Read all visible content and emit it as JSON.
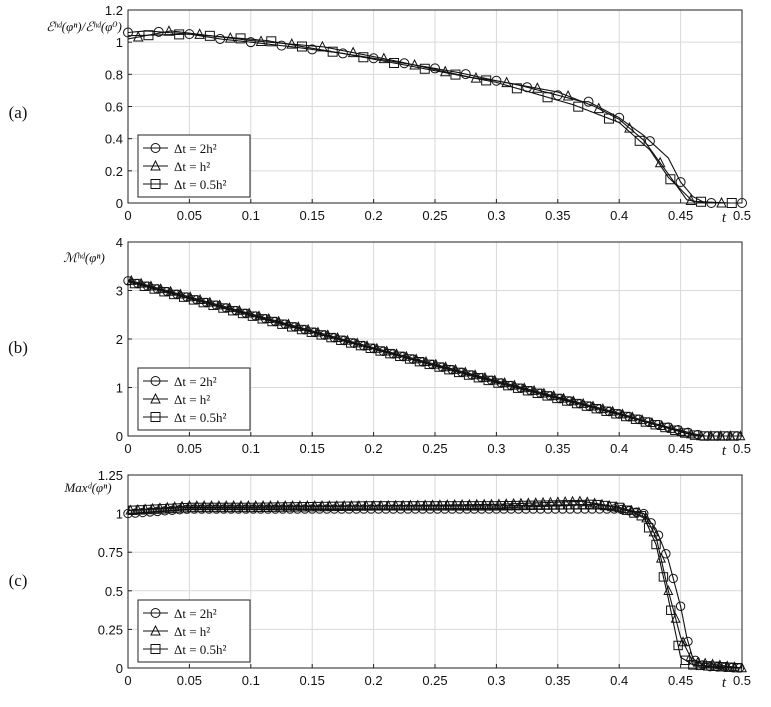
{
  "chart_data": [
    {
      "type": "line",
      "panel_label": "(a)",
      "ylabel": "ℰʰᵈ(φⁿ)/ℰʰᵈ(φ⁰)",
      "xlabel": "t",
      "xlim": [
        0,
        0.5
      ],
      "ylim": [
        0,
        1.2
      ],
      "xticks": [
        "0",
        "0.05",
        "0.1",
        "0.15",
        "0.2",
        "0.25",
        "0.3",
        "0.35",
        "0.4",
        "0.45",
        "0.5"
      ],
      "yticks": [
        "0",
        "0.2",
        "0.4",
        "0.6",
        "0.8",
        "1",
        "1.2"
      ],
      "grid": true,
      "legend_position": "bottom-left",
      "series": [
        {
          "name": "Δt = 2h²",
          "marker": "circle",
          "x": [
            0,
            0.015,
            0.05,
            0.075,
            0.1,
            0.135,
            0.175,
            0.2,
            0.24,
            0.27,
            0.3,
            0.32,
            0.35,
            0.37,
            0.375,
            0.4,
            0.42,
            0.44,
            0.45,
            0.46,
            0.47,
            0.49,
            0.5
          ],
          "y": [
            1.06,
            1.07,
            1.05,
            1.02,
            1.0,
            0.97,
            0.93,
            0.9,
            0.85,
            0.81,
            0.76,
            0.73,
            0.67,
            0.63,
            0.63,
            0.53,
            0.42,
            0.28,
            0.13,
            0.04,
            0.0,
            0.0,
            0.0
          ]
        },
        {
          "name": "Δt = h²",
          "marker": "triangle",
          "x": [
            0,
            0.035,
            0.1,
            0.16,
            0.22,
            0.28,
            0.3,
            0.35,
            0.38,
            0.4,
            0.42,
            0.44,
            0.455,
            0.47,
            0.5
          ],
          "y": [
            1.02,
            1.07,
            1.01,
            0.97,
            0.88,
            0.78,
            0.76,
            0.69,
            0.6,
            0.52,
            0.39,
            0.18,
            0.02,
            0.0,
            0.0
          ]
        },
        {
          "name": "Δt = 0.5h²",
          "marker": "square",
          "x": [
            0,
            0.05,
            0.113,
            0.175,
            0.238,
            0.3,
            0.363,
            0.4,
            0.425,
            0.44,
            0.46,
            0.49,
            0.5
          ],
          "y": [
            1.04,
            1.05,
            1.01,
            0.93,
            0.84,
            0.75,
            0.61,
            0.5,
            0.33,
            0.16,
            0.01,
            0.0,
            0.0
          ]
        }
      ]
    },
    {
      "type": "line",
      "panel_label": "(b)",
      "ylabel": "ℳʰᵈ(φⁿ)",
      "xlabel": "t",
      "xlim": [
        0,
        0.5
      ],
      "ylim": [
        0,
        4
      ],
      "xticks": [
        "0",
        "0.05",
        "0.1",
        "0.15",
        "0.2",
        "0.25",
        "0.3",
        "0.35",
        "0.4",
        "0.45",
        "0.5"
      ],
      "yticks": [
        "0",
        "1",
        "2",
        "3",
        "4"
      ],
      "grid": true,
      "legend_position": "bottom-left",
      "series": [
        {
          "name": "Δt = 2h²",
          "marker": "circle",
          "x": [
            0,
            0.1,
            0.2,
            0.3,
            0.4,
            0.46,
            0.47,
            0.5
          ],
          "y": [
            3.2,
            2.5,
            1.8,
            1.12,
            0.45,
            0.05,
            0.0,
            0.0
          ]
        },
        {
          "name": "Δt = h²",
          "marker": "triangle",
          "x": [
            0,
            0.1,
            0.2,
            0.3,
            0.4,
            0.455,
            0.465,
            0.5
          ],
          "y": [
            3.22,
            2.52,
            1.82,
            1.14,
            0.47,
            0.06,
            0.0,
            0.0
          ]
        },
        {
          "name": "Δt = 0.5h²",
          "marker": "square",
          "x": [
            0,
            0.1,
            0.2,
            0.3,
            0.4,
            0.455,
            0.465,
            0.5
          ],
          "y": [
            3.18,
            2.48,
            1.79,
            1.1,
            0.44,
            0.05,
            0.0,
            0.0
          ]
        }
      ]
    },
    {
      "type": "line",
      "panel_label": "(c)",
      "ylabel": "Maxᵈ(φⁿ)",
      "xlabel": "t",
      "xlim": [
        0,
        0.5
      ],
      "ylim": [
        0,
        1.25
      ],
      "xticks": [
        "0",
        "0.05",
        "0.1",
        "0.15",
        "0.2",
        "0.25",
        "0.3",
        "0.35",
        "0.4",
        "0.45",
        "0.5"
      ],
      "yticks": [
        "0",
        "0.25",
        "0.5",
        "0.75",
        "1",
        "1.25"
      ],
      "grid": true,
      "legend_position": "bottom-left",
      "series": [
        {
          "name": "Δt = 2h²",
          "marker": "circle",
          "x": [
            0,
            0.05,
            0.1,
            0.2,
            0.3,
            0.4,
            0.42,
            0.43,
            0.44,
            0.45,
            0.455,
            0.46,
            0.47,
            0.5
          ],
          "y": [
            1.0,
            1.03,
            1.03,
            1.03,
            1.03,
            1.03,
            1.0,
            0.9,
            0.7,
            0.4,
            0.2,
            0.06,
            0.01,
            0.0
          ]
        },
        {
          "name": "Δt = h²",
          "marker": "triangle",
          "x": [
            0,
            0.05,
            0.1,
            0.2,
            0.3,
            0.37,
            0.4,
            0.42,
            0.43,
            0.44,
            0.45,
            0.46,
            0.5
          ],
          "y": [
            1.02,
            1.05,
            1.05,
            1.05,
            1.06,
            1.08,
            1.04,
            1.0,
            0.85,
            0.5,
            0.2,
            0.04,
            0.0
          ]
        },
        {
          "name": "Δt = 0.5h²",
          "marker": "square",
          "x": [
            0,
            0.05,
            0.1,
            0.2,
            0.3,
            0.38,
            0.4,
            0.42,
            0.43,
            0.44,
            0.45,
            0.46,
            0.5
          ],
          "y": [
            1.02,
            1.04,
            1.04,
            1.05,
            1.05,
            1.06,
            1.04,
            0.98,
            0.8,
            0.45,
            0.07,
            0.02,
            0.0
          ]
        }
      ]
    }
  ]
}
